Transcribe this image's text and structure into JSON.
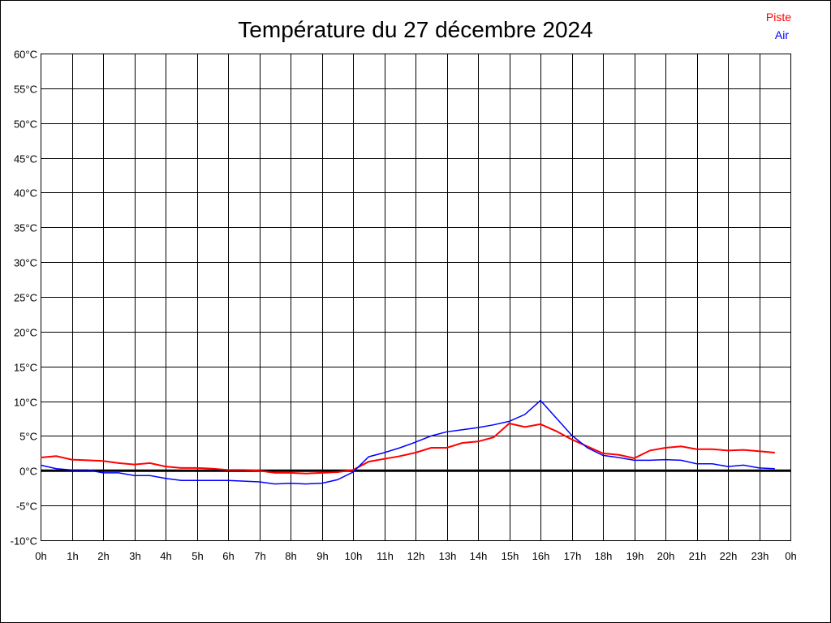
{
  "chart_data": {
    "type": "line",
    "title": "Température du 27 décembre 2024",
    "xlabel": "",
    "ylabel": "",
    "xlim": [
      0,
      24
    ],
    "ylim": [
      -10,
      60
    ],
    "grid": true,
    "legend_position": "top-right",
    "x_tick_labels": [
      "0h",
      "1h",
      "2h",
      "3h",
      "4h",
      "5h",
      "6h",
      "7h",
      "8h",
      "9h",
      "10h",
      "11h",
      "12h",
      "13h",
      "14h",
      "15h",
      "16h",
      "17h",
      "18h",
      "19h",
      "20h",
      "21h",
      "22h",
      "23h",
      "0h"
    ],
    "y_tick_values": [
      -10,
      -5,
      0,
      5,
      10,
      15,
      20,
      25,
      30,
      35,
      40,
      45,
      50,
      55,
      60
    ],
    "y_tick_labels": [
      "-10°C",
      "-5°C",
      "0°C",
      "5°C",
      "10°C",
      "15°C",
      "20°C",
      "25°C",
      "30°C",
      "35°C",
      "40°C",
      "45°C",
      "50°C",
      "55°C",
      "60°C"
    ],
    "x": [
      0,
      0.5,
      1,
      1.5,
      2,
      2.5,
      3,
      3.5,
      4,
      4.5,
      5,
      5.5,
      6,
      6.5,
      7,
      7.5,
      8,
      8.5,
      9,
      9.5,
      10,
      10.5,
      11,
      11.5,
      12,
      12.5,
      13,
      13.5,
      14,
      14.5,
      15,
      15.5,
      16,
      16.5,
      17,
      17.5,
      18,
      18.5,
      19,
      19.5,
      20,
      20.5,
      21,
      21.5,
      22,
      22.5,
      23,
      23.5
    ],
    "series": [
      {
        "name": "Piste",
        "color": "#ff0000",
        "values": [
          1.9,
          2.1,
          1.6,
          1.5,
          1.4,
          1.1,
          0.9,
          1.1,
          0.6,
          0.4,
          0.4,
          0.3,
          0.1,
          0.1,
          0.0,
          -0.3,
          -0.3,
          -0.4,
          -0.3,
          -0.2,
          0.1,
          1.3,
          1.7,
          2.1,
          2.6,
          3.3,
          3.3,
          4.0,
          4.2,
          4.8,
          6.8,
          6.3,
          6.7,
          5.7,
          4.5,
          3.5,
          2.5,
          2.3,
          1.8,
          2.9,
          3.3,
          3.5,
          3.1,
          3.1,
          2.9,
          3.0,
          2.8,
          2.6
        ]
      },
      {
        "name": "Air",
        "color": "#0000ff",
        "values": [
          0.8,
          0.3,
          0.1,
          0.1,
          -0.3,
          -0.3,
          -0.7,
          -0.7,
          -1.1,
          -1.4,
          -1.4,
          -1.4,
          -1.4,
          -1.5,
          -1.6,
          -1.9,
          -1.8,
          -1.9,
          -1.8,
          -1.3,
          -0.2,
          2.0,
          2.6,
          3.3,
          4.1,
          5.0,
          5.6,
          5.9,
          6.2,
          6.6,
          7.1,
          8.1,
          10.1,
          7.6,
          5.1,
          3.3,
          2.2,
          1.9,
          1.5,
          1.5,
          1.6,
          1.5,
          1.0,
          1.0,
          0.6,
          0.8,
          0.4,
          0.3
        ]
      }
    ]
  }
}
